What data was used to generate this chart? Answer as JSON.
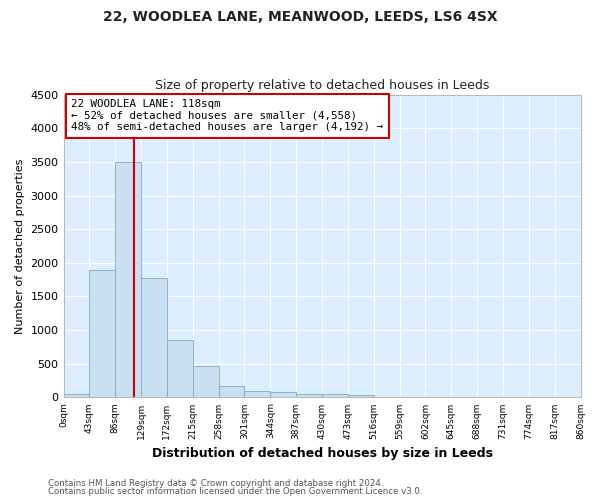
{
  "title": "22, WOODLEA LANE, MEANWOOD, LEEDS, LS6 4SX",
  "subtitle": "Size of property relative to detached houses in Leeds",
  "xlabel": "Distribution of detached houses by size in Leeds",
  "ylabel": "Number of detached properties",
  "bar_color": "#c9dff2",
  "bar_edge_color": "#7aabcf",
  "axes_bg_color": "#ddeeff",
  "fig_bg_color": "#ffffff",
  "grid_color": "#ffffff",
  "bin_labels": [
    "0sqm",
    "43sqm",
    "86sqm",
    "129sqm",
    "172sqm",
    "215sqm",
    "258sqm",
    "301sqm",
    "344sqm",
    "387sqm",
    "430sqm",
    "473sqm",
    "516sqm",
    "559sqm",
    "602sqm",
    "645sqm",
    "688sqm",
    "731sqm",
    "774sqm",
    "817sqm",
    "860sqm"
  ],
  "bar_values": [
    50,
    1900,
    3500,
    1780,
    860,
    460,
    175,
    100,
    75,
    55,
    50,
    40,
    0,
    0,
    0,
    0,
    0,
    0,
    0,
    0
  ],
  "ylim": [
    0,
    4500
  ],
  "yticks": [
    0,
    500,
    1000,
    1500,
    2000,
    2500,
    3000,
    3500,
    4000,
    4500
  ],
  "vline_x": 118,
  "bin_width": 43,
  "annotation_title": "22 WOODLEA LANE: 118sqm",
  "annotation_line1": "← 52% of detached houses are smaller (4,558)",
  "annotation_line2": "48% of semi-detached houses are larger (4,192) →",
  "annotation_box_color": "#ffffff",
  "annotation_box_edge": "#cc0000",
  "vline_color": "#cc0000",
  "footer1": "Contains HM Land Registry data © Crown copyright and database right 2024.",
  "footer2": "Contains public sector information licensed under the Open Government Licence v3.0."
}
